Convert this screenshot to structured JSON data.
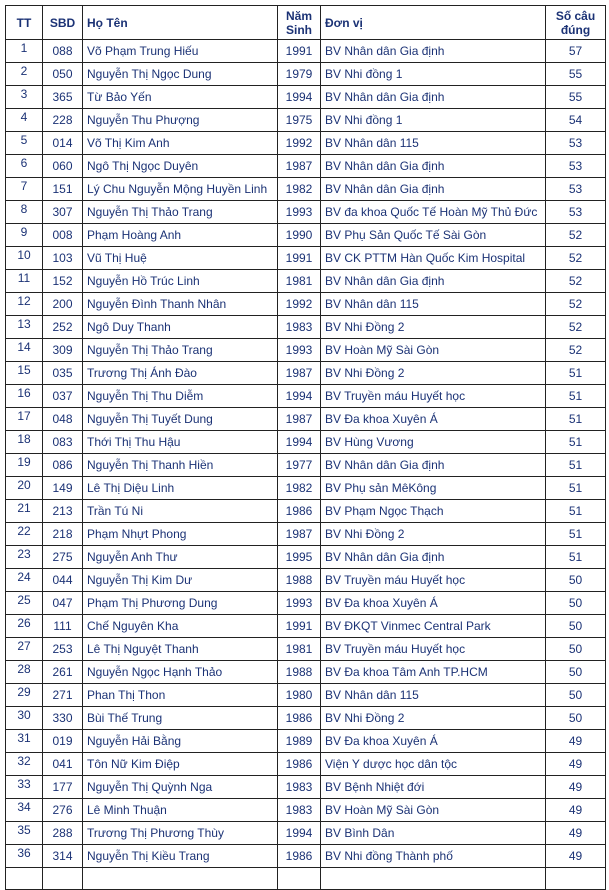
{
  "headers": {
    "tt": "TT",
    "sbd": "SBD",
    "name": "Họ Tên",
    "year_l1": "Năm",
    "year_l2": "Sinh",
    "unit": "Đơn vị",
    "score_l1": "Số câu",
    "score_l2": "đúng"
  },
  "colors": {
    "text": "#1b3275",
    "border": "#222222"
  },
  "rows": [
    [
      "1",
      "088",
      "Võ Phạm Trung Hiếu",
      "1991",
      "BV Nhân dân Gia định",
      "57"
    ],
    [
      "2",
      "050",
      "Nguyễn Thị Ngọc Dung",
      "1979",
      "BV Nhi đồng 1",
      "55"
    ],
    [
      "3",
      "365",
      "Từ Bảo Yến",
      "1994",
      "BV Nhân dân Gia định",
      "55"
    ],
    [
      "4",
      "228",
      "Nguyễn Thu Phượng",
      "1975",
      "BV Nhi đồng 1",
      "54"
    ],
    [
      "5",
      "014",
      "Võ Thị Kim Anh",
      "1992",
      "BV Nhân dân 115",
      "53"
    ],
    [
      "6",
      "060",
      "Ngô Thị Ngọc Duyên",
      "1987",
      "BV Nhân dân Gia định",
      "53"
    ],
    [
      "7",
      "151",
      "Lý Chu Nguyễn Mộng Huyền Linh",
      "1982",
      "BV Nhân dân Gia định",
      "53"
    ],
    [
      "8",
      "307",
      "Nguyễn Thị Thảo Trang",
      "1993",
      "BV đa khoa Quốc Tế Hoàn Mỹ Thủ Đức",
      "53"
    ],
    [
      "9",
      "008",
      "Phạm Hoàng Anh",
      "1990",
      "BV Phụ Sản Quốc Tế Sài Gòn",
      "52"
    ],
    [
      "10",
      "103",
      "Vũ Thị Huệ",
      "1991",
      "BV CK PTTM Hàn Quốc Kim Hospital",
      "52"
    ],
    [
      "11",
      "152",
      "Nguyễn Hồ Trúc Linh",
      "1981",
      "BV Nhân dân Gia định",
      "52"
    ],
    [
      "12",
      "200",
      "Nguyễn Đình Thanh Nhân",
      "1992",
      "BV Nhân dân 115",
      "52"
    ],
    [
      "13",
      "252",
      "Ngô Duy Thanh",
      "1983",
      "BV Nhi Đồng 2",
      "52"
    ],
    [
      "14",
      "309",
      "Nguyễn Thị Thảo Trang",
      "1993",
      "BV Hoàn Mỹ Sài Gòn",
      "52"
    ],
    [
      "15",
      "035",
      "Trương Thị Ánh Đào",
      "1987",
      "BV Nhi Đồng 2",
      "51"
    ],
    [
      "16",
      "037",
      "Nguyễn Thị Thu Diễm",
      "1994",
      "BV Truyền máu Huyết học",
      "51"
    ],
    [
      "17",
      "048",
      "Nguyễn Thị Tuyết Dung",
      "1987",
      "BV Đa khoa Xuyên Á",
      "51"
    ],
    [
      "18",
      "083",
      "Thới Thị Thu Hậu",
      "1994",
      "BV Hùng Vương",
      "51"
    ],
    [
      "19",
      "086",
      "Nguyễn Thị Thanh Hiền",
      "1977",
      "BV Nhân dân Gia định",
      "51"
    ],
    [
      "20",
      "149",
      "Lê Thị Diệu Linh",
      "1982",
      "BV Phụ sản MêKông",
      "51"
    ],
    [
      "21",
      "213",
      "Trần Tú Ni",
      "1986",
      "BV Phạm Ngọc Thạch",
      "51"
    ],
    [
      "22",
      "218",
      "Phạm Nhựt Phong",
      "1987",
      "BV Nhi Đồng 2",
      "51"
    ],
    [
      "23",
      "275",
      "Nguyễn Anh Thư",
      "1995",
      "BV Nhân dân Gia định",
      "51"
    ],
    [
      "24",
      "044",
      "Nguyễn Thị Kim Dư",
      "1988",
      "BV Truyền máu Huyết học",
      "50"
    ],
    [
      "25",
      "047",
      "Phạm Thị Phương Dung",
      "1993",
      "BV Đa khoa Xuyên Á",
      "50"
    ],
    [
      "26",
      "111",
      "Chế Nguyên Kha",
      "1991",
      "BV ĐKQT Vinmec Central Park",
      "50"
    ],
    [
      "27",
      "253",
      "Lê Thị Nguyệt Thanh",
      "1981",
      "BV Truyền máu Huyết học",
      "50"
    ],
    [
      "28",
      "261",
      "Nguyễn Ngọc Hạnh Thảo",
      "1988",
      "BV Đa khoa Tâm Anh TP.HCM",
      "50"
    ],
    [
      "29",
      "271",
      "Phan Thị Thon",
      "1980",
      "BV Nhân dân 115",
      "50"
    ],
    [
      "30",
      "330",
      "Bùi Thế Trung",
      "1986",
      "BV Nhi Đồng 2",
      "50"
    ],
    [
      "31",
      "019",
      "Nguyễn Hải Bằng",
      "1989",
      "BV Đa khoa Xuyên Á",
      "49"
    ],
    [
      "32",
      "041",
      "Tôn Nữ Kim Điệp",
      "1986",
      "Viện Y dược học dân tộc",
      "49"
    ],
    [
      "33",
      "177",
      "Nguyễn Thị Quỳnh Nga",
      "1983",
      "BV Bệnh Nhiệt đới",
      "49"
    ],
    [
      "34",
      "276",
      "Lê Minh Thuận",
      "1983",
      "BV Hoàn Mỹ Sài Gòn",
      "49"
    ],
    [
      "35",
      "288",
      "Trương Thị Phương Thùy",
      "1994",
      "BV Bình Dân",
      "49"
    ],
    [
      "36",
      "314",
      "Nguyễn Thị Kiều Trang",
      "1986",
      "BV Nhi đồng Thành phố",
      "49"
    ]
  ]
}
